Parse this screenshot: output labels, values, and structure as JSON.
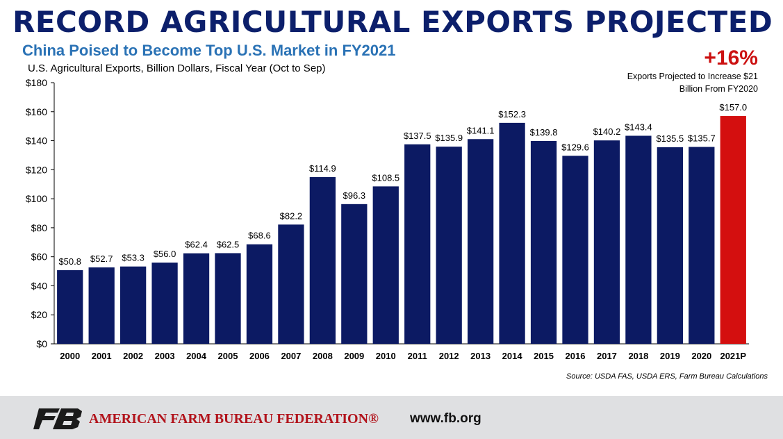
{
  "title": "RECORD AGRICULTURAL EXPORTS PROJECTED",
  "subtitle": "China Poised to Become Top U.S. Market in FY2021",
  "axis_caption": "U.S. Agricultural Exports, Billion Dollars, Fiscal Year (Oct to Sep)",
  "highlight": {
    "percent": "+16%",
    "note_line1": "Exports Projected to Increase $21",
    "note_line2": "Billion From FY2020"
  },
  "source": "Source: USDA FAS, USDA ERS, Farm Bureau Calculations",
  "footer": {
    "logo_icon": "fb-logo-icon",
    "org_name": "AMERICAN FARM BUREAU FEDERATION®",
    "website": "www.fb.org"
  },
  "colors": {
    "title": "#0c1f6b",
    "subtitle": "#2a72b5",
    "bar": "#0c1a63",
    "projected_bar": "#d40f0f",
    "highlight": "#cc1111",
    "footer_bg": "#dfe0e2",
    "brand_red": "#b2141c"
  },
  "chart_data": {
    "type": "bar",
    "categories": [
      "2000",
      "2001",
      "2002",
      "2003",
      "2004",
      "2005",
      "2006",
      "2007",
      "2008",
      "2009",
      "2010",
      "2011",
      "2012",
      "2013",
      "2014",
      "2015",
      "2016",
      "2017",
      "2018",
      "2019",
      "2020",
      "2021P"
    ],
    "values": [
      50.8,
      52.7,
      53.3,
      56.0,
      62.4,
      62.5,
      68.6,
      82.2,
      114.9,
      96.3,
      108.5,
      137.5,
      135.9,
      141.1,
      152.3,
      139.8,
      129.6,
      140.2,
      143.4,
      135.5,
      135.7,
      157.0
    ],
    "value_labels": [
      "$50.8",
      "$52.7",
      "$53.3",
      "$56.0",
      "$62.4",
      "$62.5",
      "$68.6",
      "$82.2",
      "$114.9",
      "$96.3",
      "$108.5",
      "$137.5",
      "$135.9",
      "$141.1",
      "$152.3",
      "$139.8",
      "$129.6",
      "$140.2",
      "$143.4",
      "$135.5",
      "$135.7",
      "$157.0"
    ],
    "highlighted_category": "2021P",
    "ylim": [
      0,
      180
    ],
    "yticks": [
      0,
      20,
      40,
      60,
      80,
      100,
      120,
      140,
      160,
      180
    ],
    "ytick_labels": [
      "$0",
      "$20",
      "$40",
      "$60",
      "$80",
      "$100",
      "$120",
      "$140",
      "$160",
      "$180"
    ],
    "grid": false,
    "legend": "none"
  }
}
